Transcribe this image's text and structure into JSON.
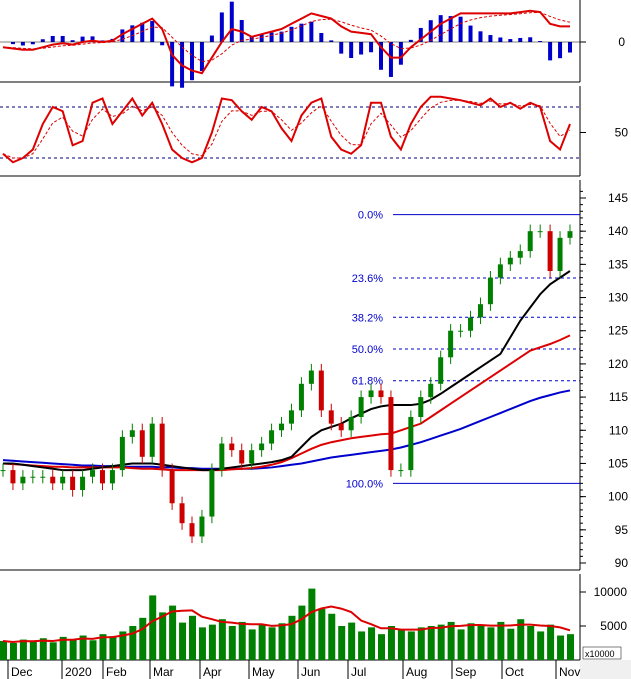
{
  "chart_data": {
    "type": "candlestick",
    "price_axis": {
      "ticks": [
        145,
        140,
        135,
        130,
        125,
        120,
        115,
        110,
        105,
        100,
        95,
        90
      ],
      "ylim": [
        89,
        147
      ]
    },
    "macd_axis": {
      "ticks": [
        "0"
      ]
    },
    "stoch_axis": {
      "ticks": [
        "50"
      ],
      "levels": [
        80,
        20
      ]
    },
    "volume_axis": {
      "ticks": [
        "10000",
        "5000"
      ],
      "unit": "x10000"
    },
    "months": [
      "Dec",
      "2020",
      "Feb",
      "Mar",
      "Apr",
      "May",
      "Jun",
      "Jul",
      "Aug",
      "Sep",
      "Oct",
      "Nov"
    ],
    "closes": [
      104,
      102,
      103,
      103,
      103,
      102,
      103,
      101,
      103,
      104,
      102,
      104,
      109,
      110,
      106,
      111,
      104,
      99,
      96,
      94,
      97,
      104,
      108,
      107,
      105,
      107,
      108,
      110,
      111,
      113,
      117,
      119,
      113,
      111,
      110,
      112,
      115,
      116,
      115,
      104,
      104,
      112,
      115,
      117,
      121,
      125,
      125,
      127,
      129,
      133,
      135,
      136,
      137,
      140,
      140,
      134,
      139,
      140
    ],
    "ma_black": [
      105,
      105,
      104.8,
      104.6,
      104.4,
      104.2,
      104,
      104,
      104,
      104.2,
      104.4,
      104.6,
      104.8,
      105,
      105,
      105,
      104.8,
      104.6,
      104.4,
      104.2,
      104,
      104,
      104.2,
      104.4,
      104.6,
      104.8,
      105,
      105.2,
      105.5,
      106,
      107.5,
      109,
      110,
      110.5,
      111,
      111.8,
      112.5,
      113.2,
      113.6,
      113.8,
      113.8,
      113.8,
      114,
      114.6,
      115.5,
      116.5,
      117.5,
      118.5,
      119.5,
      120.5,
      121.5,
      124,
      126.5,
      128.5,
      130.5,
      132,
      133,
      134
    ],
    "ma_red": [
      105,
      104.9,
      104.8,
      104.7,
      104.6,
      104.5,
      104.5,
      104.4,
      104.4,
      104.4,
      104.4,
      104.4,
      104.4,
      104.3,
      104.2,
      104.2,
      104.1,
      104,
      104,
      104,
      104,
      104,
      104,
      104.1,
      104.2,
      104.3,
      104.5,
      104.8,
      105.2,
      105.8,
      106.5,
      107.2,
      107.8,
      108.2,
      108.5,
      108.8,
      109,
      109.2,
      109.4,
      109.5,
      110,
      110.5,
      111,
      112,
      113,
      114,
      115,
      116,
      117,
      118,
      119,
      120,
      121,
      122,
      122.5,
      123,
      123.6,
      124.3
    ],
    "ma_blue": [
      105.5,
      105.4,
      105.3,
      105.2,
      105.1,
      105,
      104.9,
      104.8,
      104.7,
      104.7,
      104.6,
      104.6,
      104.5,
      104.5,
      104.5,
      104.5,
      104.4,
      104.4,
      104.3,
      104.3,
      104.2,
      104.2,
      104.2,
      104.2,
      104.2,
      104.2,
      104.3,
      104.4,
      104.6,
      104.8,
      105,
      105.3,
      105.6,
      105.9,
      106.1,
      106.3,
      106.5,
      106.7,
      106.9,
      107.1,
      107.4,
      107.8,
      108.2,
      108.7,
      109.2,
      109.7,
      110.2,
      110.8,
      111.4,
      112,
      112.6,
      113.2,
      113.8,
      114.4,
      114.9,
      115.3,
      115.7,
      116
    ],
    "macd": [
      -0.2,
      -0.25,
      -0.3,
      -0.3,
      -0.2,
      -0.1,
      -0.05,
      -0.1,
      0,
      0.05,
      0,
      0.05,
      0.3,
      0.5,
      0.7,
      0.9,
      0.5,
      -0.5,
      -0.9,
      -1.1,
      -1.2,
      -0.6,
      0,
      0.5,
      0.4,
      0.2,
      0.3,
      0.4,
      0.5,
      0.7,
      0.9,
      1.1,
      1,
      0.9,
      0.6,
      0.4,
      0.35,
      0.3,
      -0.2,
      -0.6,
      -0.6,
      -0.2,
      0.1,
      0.4,
      0.7,
      0.9,
      1.1,
      1.1,
      1.1,
      1.1,
      1.1,
      1.1,
      1.15,
      1.2,
      1.15,
      0.7,
      0.6,
      0.6
    ],
    "stoch_k": [
      25,
      15,
      20,
      30,
      60,
      80,
      75,
      35,
      40,
      85,
      90,
      60,
      75,
      90,
      70,
      85,
      60,
      30,
      20,
      15,
      20,
      50,
      90,
      88,
      75,
      65,
      80,
      75,
      55,
      40,
      70,
      85,
      90,
      45,
      30,
      25,
      35,
      85,
      85,
      45,
      30,
      60,
      80,
      92,
      92,
      90,
      88,
      85,
      82,
      90,
      80,
      85,
      78,
      85,
      80,
      40,
      30,
      60
    ],
    "volume": [
      2800,
      2500,
      3000,
      2700,
      3200,
      2600,
      3400,
      3000,
      3600,
      2900,
      3800,
      3500,
      4200,
      5000,
      6200,
      9500,
      7000,
      8000,
      5500,
      6500,
      4800,
      5200,
      6000,
      5000,
      5600,
      4500,
      5200,
      4800,
      5400,
      6500,
      8000,
      10500,
      7500,
      6800,
      5000,
      5500,
      4200,
      4800,
      3800,
      5000,
      4500,
      4200,
      4800,
      5000,
      5200,
      5600,
      4500,
      5400,
      5000,
      4800,
      5600,
      4600,
      6000,
      5000,
      4200,
      5200,
      3600,
      3800
    ],
    "fibonacci": {
      "high": 142.5,
      "low": 102,
      "levels": [
        {
          "label": "0.0%",
          "ratio": 0
        },
        {
          "label": "23.6%",
          "ratio": 0.236
        },
        {
          "label": "38.2%",
          "ratio": 0.382
        },
        {
          "label": "50.0%",
          "ratio": 0.5
        },
        {
          "label": "61.8%",
          "ratio": 0.618
        },
        {
          "label": "100.0%",
          "ratio": 1
        }
      ]
    },
    "colors": {
      "up": "#008000",
      "down": "#cc0000",
      "ma_black": "#000000",
      "ma_red": "#dd0000",
      "ma_blue": "#0000cc",
      "fib": "#0000cc",
      "volume": "#008000"
    }
  }
}
